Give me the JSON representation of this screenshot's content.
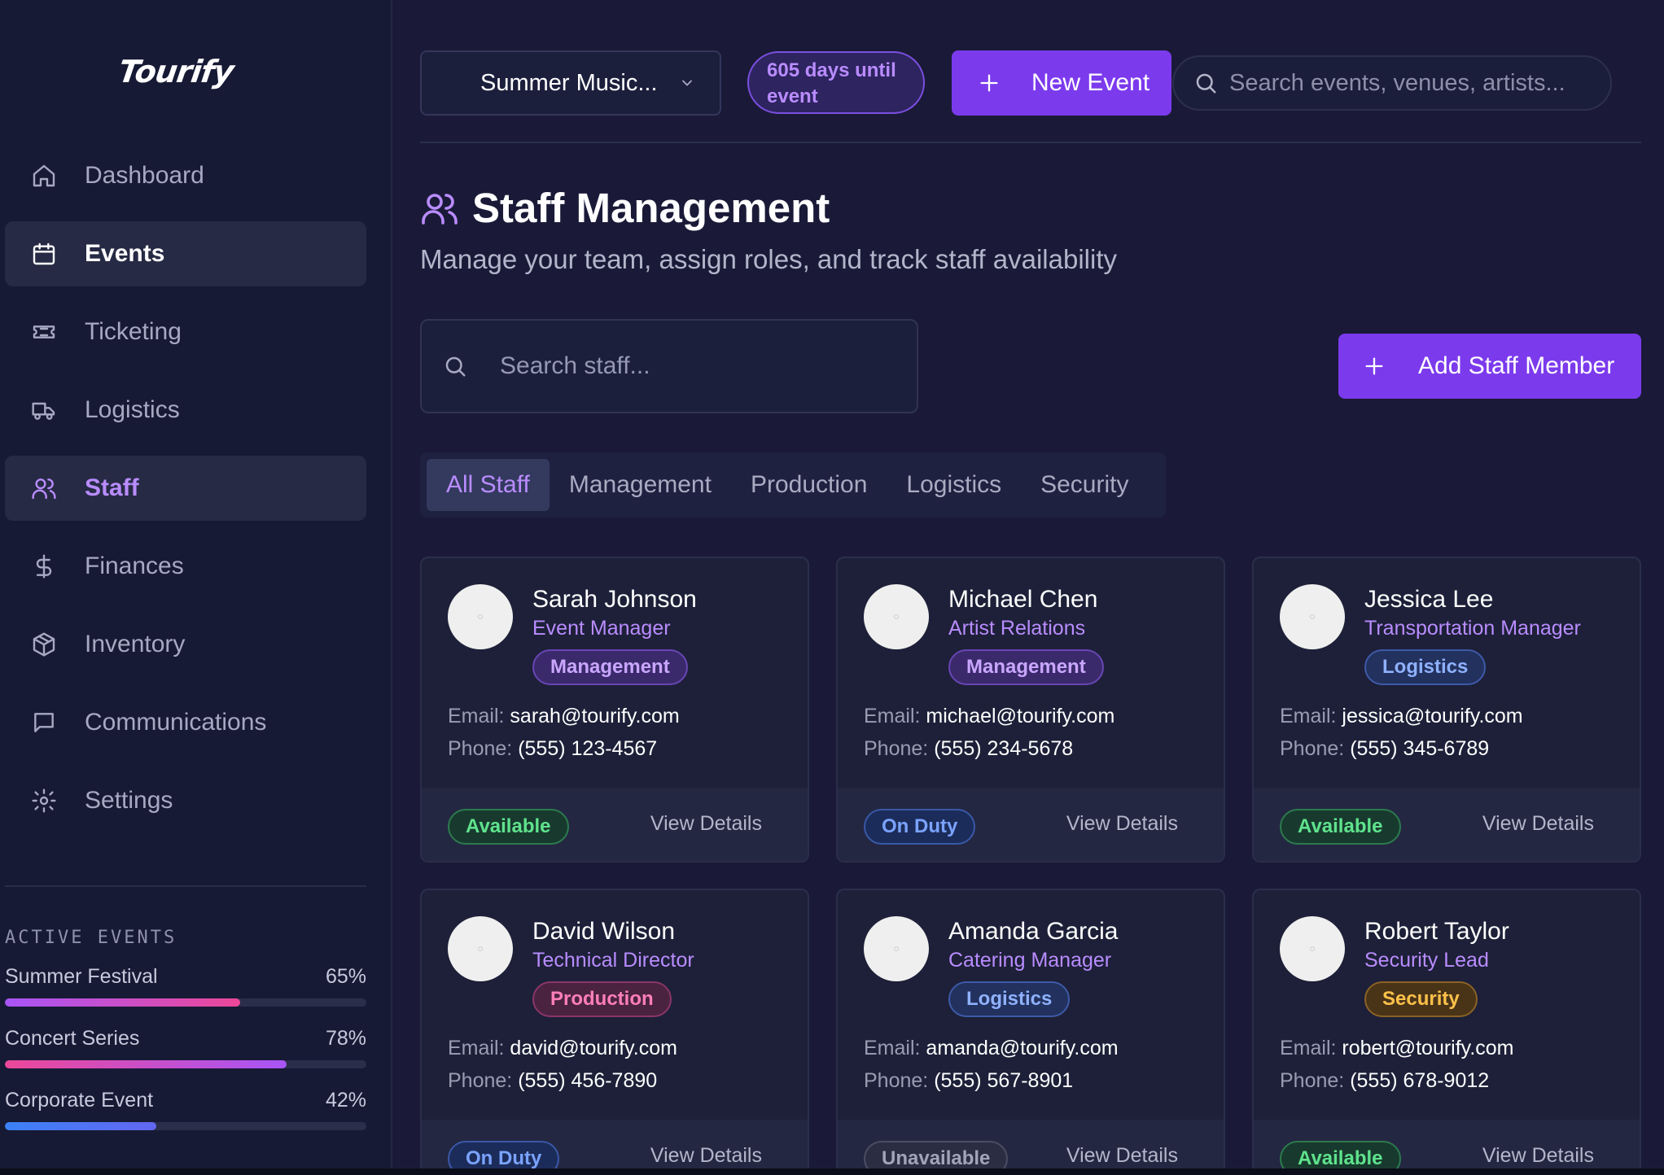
{
  "app": {
    "logo": "Tourify"
  },
  "sidebar": {
    "items": [
      {
        "label": "Dashboard",
        "icon": "home-icon"
      },
      {
        "label": "Events",
        "icon": "calendar-icon"
      },
      {
        "label": "Ticketing",
        "icon": "ticket-icon"
      },
      {
        "label": "Logistics",
        "icon": "truck-icon"
      },
      {
        "label": "Staff",
        "icon": "users-icon"
      },
      {
        "label": "Finances",
        "icon": "dollar-icon"
      },
      {
        "label": "Inventory",
        "icon": "box-icon"
      },
      {
        "label": "Communications",
        "icon": "message-icon"
      },
      {
        "label": "Settings",
        "icon": "gear-icon"
      }
    ],
    "active_events_title": "ACTIVE EVENTS",
    "active_events": [
      {
        "name": "Summer Festival",
        "percent_label": "65%",
        "progress": 0.65,
        "colors": [
          "#a855f7",
          "#ec4899"
        ]
      },
      {
        "name": "Concert Series",
        "percent_label": "78%",
        "progress": 0.78,
        "colors": [
          "#ec4899",
          "#a855f7"
        ]
      },
      {
        "name": "Corporate Event",
        "percent_label": "42%",
        "progress": 0.42,
        "colors": [
          "#3b82f6",
          "#6366f1"
        ]
      }
    ]
  },
  "header": {
    "event_select": "Summer Music...",
    "countdown_line1": "605 days until",
    "countdown_line2": "event",
    "new_event_label": "New Event",
    "search_placeholder": "Search events, venues, artists..."
  },
  "page": {
    "title": "Staff Management",
    "subtitle": "Manage your team, assign roles, and track staff availability",
    "search_placeholder": "Search staff...",
    "add_staff_label": "Add Staff Member",
    "tabs": [
      "All Staff",
      "Management",
      "Production",
      "Logistics",
      "Security"
    ]
  },
  "staff": [
    {
      "name": "Sarah Johnson",
      "role": "Event Manager",
      "department": "Management",
      "email_label": "Email:",
      "email": "sarah@tourify.com",
      "phone_label": "Phone:",
      "phone": "(555) 123-4567",
      "status": "Available",
      "action": "View Details"
    },
    {
      "name": "Michael Chen",
      "role": "Artist Relations",
      "department": "Management",
      "email_label": "Email:",
      "email": "michael@tourify.com",
      "phone_label": "Phone:",
      "phone": "(555) 234-5678",
      "status": "On Duty",
      "action": "View Details"
    },
    {
      "name": "Jessica Lee",
      "role": "Transportation Manager",
      "department": "Logistics",
      "email_label": "Email:",
      "email": "jessica@tourify.com",
      "phone_label": "Phone:",
      "phone": "(555) 345-6789",
      "status": "Available",
      "action": "View Details"
    },
    {
      "name": "David Wilson",
      "role": "Technical Director",
      "department": "Production",
      "email_label": "Email:",
      "email": "david@tourify.com",
      "phone_label": "Phone:",
      "phone": "(555) 456-7890",
      "status": "On Duty",
      "action": "View Details"
    },
    {
      "name": "Amanda Garcia",
      "role": "Catering Manager",
      "department": "Logistics",
      "email_label": "Email:",
      "email": "amanda@tourify.com",
      "phone_label": "Phone:",
      "phone": "(555) 567-8901",
      "status": "Unavailable",
      "action": "View Details"
    },
    {
      "name": "Robert Taylor",
      "role": "Security Lead",
      "department": "Security",
      "email_label": "Email:",
      "email": "robert@tourify.com",
      "phone_label": "Phone:",
      "phone": "(555) 678-9012",
      "status": "Available",
      "action": "View Details"
    }
  ],
  "colors": {
    "accent": "#7c3aed",
    "accent_text": "#b98cff",
    "background": "#1a1a38",
    "sidebar": "#171a35"
  }
}
